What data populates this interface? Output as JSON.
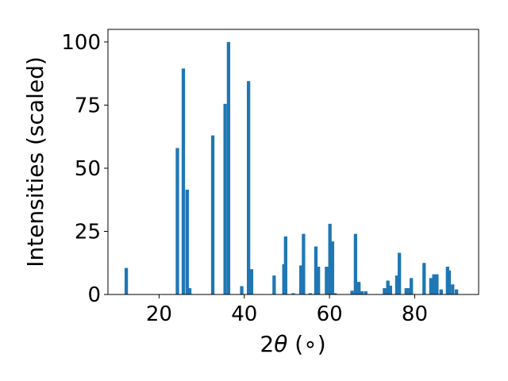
{
  "chart_data": {
    "type": "bar",
    "title": "",
    "xlabel_prefix": "2",
    "xlabel_symbol": "θ",
    "xlabel_suffix": " (∘)",
    "ylabel": "Intensities (scaled)",
    "xlim": [
      8,
      95
    ],
    "ylim": [
      0,
      105
    ],
    "xticks": [
      20,
      40,
      60,
      80
    ],
    "yticks": [
      0,
      25,
      50,
      75,
      100
    ],
    "grid": false,
    "bar_color": "#1f77b4",
    "bar_width": 0.8,
    "x": [
      12.3,
      24.3,
      25.7,
      26.6,
      27.2,
      32.6,
      35.5,
      36.3,
      39.4,
      41.0,
      41.7,
      47.0,
      49.3,
      49.7,
      51.5,
      53.3,
      53.9,
      55.5,
      56.8,
      57.4,
      59.3,
      60.1,
      60.7,
      61.3,
      65.3,
      66.1,
      66.9,
      67.6,
      68.5,
      72.9,
      73.7,
      74.3,
      75.8,
      76.4,
      78.0,
      78.6,
      79.2,
      82.2,
      83.8,
      84.5,
      85.2,
      86.2,
      87.7,
      88.1,
      88.9,
      89.8
    ],
    "values": [
      10.5,
      58,
      89.5,
      41.5,
      2.5,
      63,
      75.5,
      100,
      3.3,
      84.5,
      10,
      7.5,
      12,
      23,
      0.5,
      11.5,
      24,
      0.5,
      19,
      11,
      11,
      28,
      21,
      0.5,
      1.5,
      24,
      5,
      1.3,
      1.3,
      2.5,
      5.5,
      3.5,
      7.5,
      16.5,
      2.5,
      2.5,
      6.5,
      12.5,
      6.5,
      8,
      8,
      2,
      11,
      9.5,
      4,
      2
    ]
  }
}
